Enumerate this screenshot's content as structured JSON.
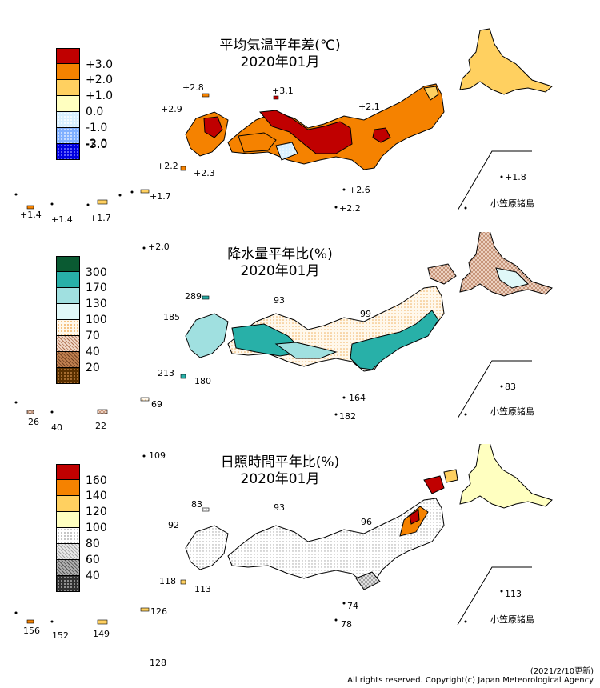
{
  "panels": [
    {
      "title_line1": "平均気温平年差(℃)",
      "title_line2": "2020年01月",
      "legend": [
        {
          "label": "+3.0",
          "color": "#c00000",
          "pattern": "none"
        },
        {
          "label": "+2.0",
          "color": "#f58200",
          "pattern": "none"
        },
        {
          "label": "+1.0",
          "color": "#ffd060",
          "pattern": "none"
        },
        {
          "label": "0.0",
          "color": "#ffffc0",
          "pattern": "none"
        },
        {
          "label": "-1.0",
          "color": "#d8f0ff",
          "pattern": "dots"
        },
        {
          "label": "-2.0",
          "color": "#80b0ff",
          "pattern": "dots"
        },
        {
          "label": "-3.0",
          "color": "#0000e0",
          "pattern": "dots"
        }
      ],
      "values": [
        "+2.8",
        "+3.1",
        "+2.9",
        "+2.1",
        "+2.2",
        "+2.3",
        "+2.6",
        "+2.2",
        "+1.8",
        "+1.4",
        "+1.4",
        "+1.7",
        "+1.7",
        "+2.0"
      ],
      "ogasawara_label": "小笠原諸島"
    },
    {
      "title_line1": "降水量平年比(%)",
      "title_line2": "2020年01月",
      "legend": [
        {
          "label": "300",
          "color": "#0a5a32",
          "pattern": "none"
        },
        {
          "label": "170",
          "color": "#28b0a8",
          "pattern": "none"
        },
        {
          "label": "130",
          "color": "#a0e0e0",
          "pattern": "none"
        },
        {
          "label": "100",
          "color": "#e0f8f8",
          "pattern": "none"
        },
        {
          "label": "70",
          "color": "#ffe8c0",
          "pattern": "dots"
        },
        {
          "label": "40",
          "color": "#e0a880",
          "pattern": "grid"
        },
        {
          "label": "20",
          "color": "#a05a28",
          "pattern": "grid"
        },
        {
          "label": "",
          "color": "#5a3000",
          "pattern": "dots"
        }
      ],
      "values": [
        "289",
        "93",
        "185",
        "99",
        "213",
        "180",
        "164",
        "182",
        "83",
        "26",
        "40",
        "22",
        "69",
        "109"
      ],
      "ogasawara_label": "小笠原諸島"
    },
    {
      "title_line1": "日照時間平年比(%)",
      "title_line2": "2020年01月",
      "legend": [
        {
          "label": "160",
          "color": "#c00000",
          "pattern": "none"
        },
        {
          "label": "140",
          "color": "#f58200",
          "pattern": "none"
        },
        {
          "label": "120",
          "color": "#ffd060",
          "pattern": "none"
        },
        {
          "label": "100",
          "color": "#ffffc0",
          "pattern": "none"
        },
        {
          "label": "80",
          "color": "#ffffff",
          "pattern": "dots"
        },
        {
          "label": "60",
          "color": "#d8d8d8",
          "pattern": "grid"
        },
        {
          "label": "40",
          "color": "#909090",
          "pattern": "grid"
        },
        {
          "label": "",
          "color": "#303030",
          "pattern": "dots"
        }
      ],
      "values": [
        "83",
        "93",
        "92",
        "96",
        "118",
        "113",
        "74",
        "78",
        "113",
        "156",
        "152",
        "149",
        "126",
        "128"
      ],
      "ogasawara_label": "小笠原諸島"
    }
  ],
  "footer": {
    "updated": "(2021/2/10更新)",
    "copyright": "All rights reserved. Copyright(c) Japan Meteorological Agency"
  }
}
